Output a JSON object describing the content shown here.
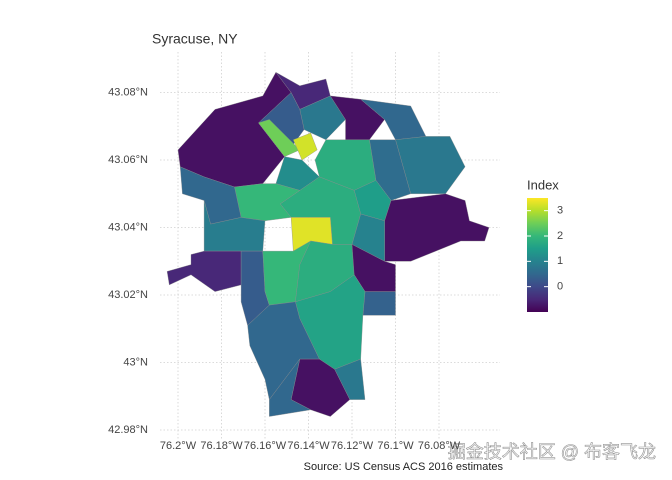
{
  "chart_data": {
    "type": "choropleth",
    "title": "Syracuse, NY",
    "caption": "Source: US Census ACS 2016 estimates",
    "watermark": "掘金技术社区 @ 布客飞龙",
    "legend_title": "Index",
    "colormap": "viridis",
    "clim": [
      -1,
      3.5
    ],
    "legend_ticks": [
      0,
      1,
      2,
      3
    ],
    "grid": true,
    "xlim": [
      -76.21,
      -76.05
    ],
    "ylim": [
      42.975,
      43.09
    ],
    "xticks": [
      {
        "value": -76.2,
        "label": "76.2°W"
      },
      {
        "value": -76.18,
        "label": "76.18°W"
      },
      {
        "value": -76.16,
        "label": "76.16°W"
      },
      {
        "value": -76.14,
        "label": "76.14°W"
      },
      {
        "value": -76.12,
        "label": "76.12°W"
      },
      {
        "value": -76.1,
        "label": "76.1°W"
      },
      {
        "value": -76.08,
        "label": "76.08°W"
      }
    ],
    "yticks": [
      {
        "value": 42.98,
        "label": "42.98°N"
      },
      {
        "value": 43,
        "label": "43°N"
      },
      {
        "value": 43.02,
        "label": "43.02°N"
      },
      {
        "value": 43.04,
        "label": "43.04°N"
      },
      {
        "value": 43.06,
        "label": "43.06°N"
      },
      {
        "value": 43.08,
        "label": "43.08°N"
      }
    ],
    "regions": [
      {
        "value": -0.8,
        "lon": [
          -76.2,
          -76.183,
          -76.161,
          -76.155,
          -76.148,
          -76.163,
          -76.151,
          -76.161,
          -76.174,
          -76.188,
          -76.199
        ],
        "lat": [
          43.063,
          43.075,
          43.079,
          43.086,
          43.08,
          43.071,
          43.061,
          43.053,
          43.052,
          43.055,
          43.058
        ]
      },
      {
        "value": -0.5,
        "lon": [
          -76.155,
          -76.144,
          -76.132,
          -76.13,
          -76.144,
          -76.148
        ],
        "lat": [
          43.086,
          43.082,
          43.084,
          43.079,
          43.075,
          43.08
        ]
      },
      {
        "value": 0.8,
        "lon": [
          -76.144,
          -76.13,
          -76.123,
          -76.132,
          -76.142
        ],
        "lat": [
          43.075,
          43.079,
          43.072,
          43.066,
          43.069
        ]
      },
      {
        "value": 0.3,
        "lon": [
          -76.163,
          -76.148,
          -76.144,
          -76.142,
          -76.151
        ],
        "lat": [
          43.071,
          43.08,
          43.075,
          43.069,
          43.061
        ]
      },
      {
        "value": 2.5,
        "lon": [
          -76.163,
          -76.158,
          -76.144,
          -76.151
        ],
        "lat": [
          43.071,
          43.072,
          43.063,
          43.061
        ]
      },
      {
        "value": 3.2,
        "lon": [
          -76.147,
          -76.139,
          -76.136,
          -76.143
        ],
        "lat": [
          43.066,
          43.068,
          43.063,
          43.06
        ]
      },
      {
        "value": -0.8,
        "lon": [
          -76.13,
          -76.116,
          -76.105,
          -76.112,
          -76.123,
          -76.123
        ],
        "lat": [
          43.079,
          43.078,
          43.072,
          43.066,
          43.066,
          43.072
        ]
      },
      {
        "value": 0.5,
        "lon": [
          -76.116,
          -76.093,
          -76.086,
          -76.1,
          -76.105
        ],
        "lat": [
          43.078,
          43.076,
          43.067,
          43.066,
          43.072
        ]
      },
      {
        "value": 0.8,
        "lon": [
          -76.086,
          -76.075,
          -76.068,
          -76.077,
          -76.093,
          -76.1
        ],
        "lat": [
          43.067,
          43.067,
          43.058,
          43.05,
          43.05,
          43.066
        ]
      },
      {
        "value": 0.6,
        "lon": [
          -76.112,
          -76.1,
          -76.093,
          -76.102,
          -76.109
        ],
        "lat": [
          43.066,
          43.066,
          43.05,
          43.048,
          43.054
        ]
      },
      {
        "value": 1.8,
        "lon": [
          -76.132,
          -76.123,
          -76.112,
          -76.109,
          -76.119,
          -76.135,
          -76.137
        ],
        "lat": [
          43.066,
          43.066,
          43.066,
          43.054,
          43.051,
          43.055,
          43.06
        ]
      },
      {
        "value": 1.2,
        "lon": [
          -76.151,
          -76.143,
          -76.135,
          -76.144,
          -76.155
        ],
        "lat": [
          43.061,
          43.06,
          43.055,
          43.051,
          43.053
        ]
      },
      {
        "value": 1.5,
        "lon": [
          -76.119,
          -76.109,
          -76.102,
          -76.105,
          -76.116
        ],
        "lat": [
          43.051,
          43.054,
          43.048,
          43.042,
          43.044
        ]
      },
      {
        "value": -0.8,
        "lon": [
          -76.102,
          -76.077,
          -76.068,
          -76.066,
          -76.057,
          -76.059,
          -76.07,
          -76.093,
          -76.105,
          -76.105
        ],
        "lat": [
          43.048,
          43.05,
          43.048,
          43.042,
          43.04,
          43.036,
          43.036,
          43.03,
          43.03,
          43.042
        ]
      },
      {
        "value": 1.8,
        "lon": [
          -76.144,
          -76.135,
          -76.119,
          -76.116,
          -76.12,
          -76.129,
          -76.13,
          -76.148,
          -76.153
        ],
        "lat": [
          43.051,
          43.055,
          43.051,
          43.044,
          43.035,
          43.035,
          43.043,
          43.043,
          43.047
        ]
      },
      {
        "value": 3.3,
        "lon": [
          -76.148,
          -76.13,
          -76.129,
          -76.139,
          -76.147
        ],
        "lat": [
          43.043,
          43.043,
          43.035,
          43.036,
          43.033
        ]
      },
      {
        "value": 2.0,
        "lon": [
          -76.174,
          -76.161,
          -76.155,
          -76.144,
          -76.153,
          -76.148,
          -76.16,
          -76.171
        ],
        "lat": [
          43.052,
          43.053,
          43.053,
          43.051,
          43.047,
          43.043,
          43.042,
          43.043
        ]
      },
      {
        "value": 0.5,
        "lon": [
          -76.199,
          -76.188,
          -76.174,
          -76.171,
          -76.185,
          -76.188,
          -76.198
        ],
        "lat": [
          43.058,
          43.055,
          43.052,
          43.043,
          43.041,
          43.048,
          43.05
        ]
      },
      {
        "value": 0.9,
        "lon": [
          -76.188,
          -76.185,
          -76.171,
          -76.16,
          -76.161,
          -76.171,
          -76.188
        ],
        "lat": [
          43.048,
          43.041,
          43.043,
          43.042,
          43.033,
          43.033,
          43.033
        ]
      },
      {
        "value": -0.5,
        "lon": [
          -76.188,
          -76.171,
          -76.171,
          -76.183,
          -76.194,
          -76.204,
          -76.205,
          -76.194,
          -76.194
        ],
        "lat": [
          43.033,
          43.033,
          43.023,
          43.021,
          43.026,
          43.023,
          43.027,
          43.029,
          43.032
        ]
      },
      {
        "value": 0.3,
        "lon": [
          -76.171,
          -76.161,
          -76.16,
          -76.158,
          -76.168,
          -76.171,
          -76.171
        ],
        "lat": [
          43.033,
          43.033,
          43.021,
          43.017,
          43.011,
          43.018,
          43.023
        ]
      },
      {
        "value": 2.0,
        "lon": [
          -76.161,
          -76.147,
          -76.139,
          -76.144,
          -76.146,
          -76.158,
          -76.16
        ],
        "lat": [
          43.033,
          43.033,
          43.036,
          43.029,
          43.018,
          43.017,
          43.021
        ]
      },
      {
        "value": 1.8,
        "lon": [
          -76.139,
          -76.129,
          -76.12,
          -76.119,
          -76.13,
          -76.146,
          -76.144
        ],
        "lat": [
          43.036,
          43.035,
          43.035,
          43.026,
          43.021,
          43.018,
          43.029
        ]
      },
      {
        "value": 1.0,
        "lon": [
          -76.116,
          -76.105,
          -76.105,
          -76.12
        ],
        "lat": [
          43.044,
          43.042,
          43.03,
          43.035
        ]
      },
      {
        "value": -0.8,
        "lon": [
          -76.12,
          -76.105,
          -76.1,
          -76.1,
          -76.114,
          -76.119
        ],
        "lat": [
          43.035,
          43.03,
          43.029,
          43.021,
          43.021,
          43.026
        ]
      },
      {
        "value": 0.4,
        "lon": [
          -76.114,
          -76.1,
          -76.1,
          -76.115
        ],
        "lat": [
          43.021,
          43.021,
          43.014,
          43.014
        ]
      },
      {
        "value": 1.6,
        "lon": [
          -76.146,
          -76.13,
          -76.119,
          -76.114,
          -76.115,
          -76.116,
          -76.128,
          -76.135,
          -76.144
        ],
        "lat": [
          43.018,
          43.021,
          43.026,
          43.021,
          43.014,
          43.001,
          42.998,
          43.001,
          43.013
        ]
      },
      {
        "value": 0.5,
        "lon": [
          -76.168,
          -76.158,
          -76.146,
          -76.144,
          -76.135,
          -76.144,
          -76.158,
          -76.16,
          -76.167
        ],
        "lat": [
          43.011,
          43.017,
          43.018,
          43.013,
          43.001,
          43.001,
          42.989,
          42.995,
          43.005
        ]
      },
      {
        "value": 0.8,
        "lon": [
          -76.128,
          -76.116,
          -76.114,
          -76.121
        ],
        "lat": [
          42.998,
          43.001,
          42.989,
          42.989
        ]
      },
      {
        "value": -0.8,
        "lon": [
          -76.144,
          -76.135,
          -76.128,
          -76.121,
          -76.13,
          -76.139,
          -76.148
        ],
        "lat": [
          43.001,
          43.001,
          42.998,
          42.989,
          42.984,
          42.986,
          42.989
        ]
      },
      {
        "value": 0.5,
        "lon": [
          -76.158,
          -76.144,
          -76.148,
          -76.139,
          -76.158
        ],
        "lat": [
          42.989,
          43.001,
          42.989,
          42.986,
          42.984
        ]
      }
    ]
  }
}
